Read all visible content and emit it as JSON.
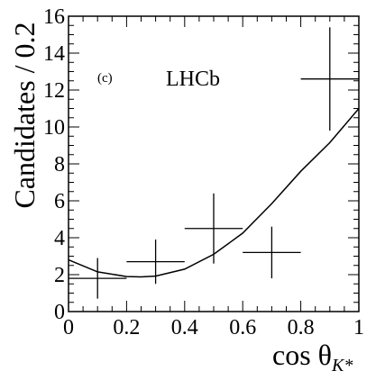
{
  "chart_data": {
    "type": "scatter",
    "title": "",
    "xlabel": "cos θ",
    "xlabel_subscript": "K*",
    "ylabel": "Candidates / 0.2",
    "xlim": [
      0,
      1
    ],
    "ylim": [
      0,
      16
    ],
    "grid": false,
    "x_ticks": [
      "0",
      "0.2",
      "0.4",
      "0.6",
      "0.8",
      "1"
    ],
    "y_ticks": [
      "0",
      "2",
      "4",
      "6",
      "8",
      "10",
      "12",
      "14",
      "16"
    ],
    "annotations": {
      "panel": "(c)",
      "experiment": "LHCb"
    },
    "series": [
      {
        "kind": "points_with_errors",
        "points": [
          {
            "x": 0.1,
            "x_err": 0.1,
            "y": 1.8,
            "y_low": 0.7,
            "y_high": 2.9
          },
          {
            "x": 0.3,
            "x_err": 0.1,
            "y": 2.7,
            "y_low": 1.5,
            "y_high": 3.9
          },
          {
            "x": 0.5,
            "x_err": 0.1,
            "y": 4.5,
            "y_low": 2.6,
            "y_high": 6.4
          },
          {
            "x": 0.7,
            "x_err": 0.1,
            "y": 3.2,
            "y_low": 1.8,
            "y_high": 4.6
          },
          {
            "x": 0.9,
            "x_err": 0.1,
            "y": 12.6,
            "y_low": 9.8,
            "y_high": 15.4
          }
        ]
      },
      {
        "kind": "curve",
        "x": [
          0,
          0.1,
          0.2,
          0.25,
          0.3,
          0.4,
          0.5,
          0.6,
          0.7,
          0.8,
          0.9,
          1.0
        ],
        "y": [
          2.8,
          2.15,
          1.9,
          1.88,
          1.92,
          2.3,
          3.1,
          4.25,
          5.85,
          7.6,
          9.15,
          11.0
        ]
      }
    ]
  }
}
